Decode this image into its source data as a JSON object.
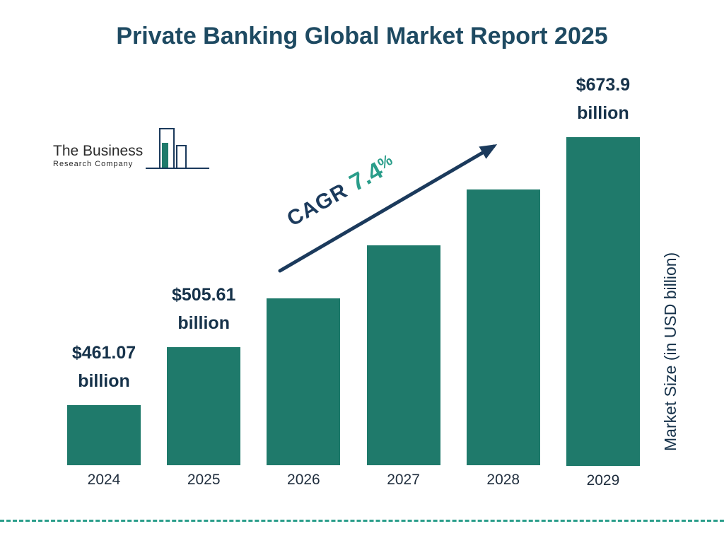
{
  "title": "Private Banking Global Market Report 2025",
  "logo": {
    "name_line1": "The Business",
    "name_line2": "Research Company"
  },
  "cagr": {
    "label": "CAGR",
    "value": "7.4",
    "unit": "%"
  },
  "y_axis_label": "Market Size (in USD billion)",
  "colors": {
    "title": "#1e4a62",
    "navy": "#1b3a5c",
    "bar": "#1f7a6b",
    "teal": "#2a9d8a",
    "text-dark": "#16324a"
  },
  "chart_data": {
    "type": "bar",
    "title": "Private Banking Global Market Report 2025",
    "xlabel": "",
    "ylabel": "Market Size (in USD billion)",
    "ylim": [
      415,
      675
    ],
    "grid": false,
    "legend": false,
    "categories": [
      "2024",
      "2025",
      "2026",
      "2027",
      "2028",
      "2029"
    ],
    "values": [
      461.07,
      505.61,
      543.0,
      583.2,
      626.4,
      673.9
    ],
    "annotations": [
      "CAGR 7.4%"
    ],
    "bars": [
      {
        "year": "2024",
        "value": 461.07,
        "label_lines": [
          "$461.07",
          "billion"
        ]
      },
      {
        "year": "2025",
        "value": 505.61,
        "label_lines": [
          "$505.61",
          "billion"
        ]
      },
      {
        "year": "2026",
        "value": 543.0,
        "label_lines": null
      },
      {
        "year": "2027",
        "value": 583.2,
        "label_lines": null
      },
      {
        "year": "2028",
        "value": 626.4,
        "label_lines": null
      },
      {
        "year": "2029",
        "value": 673.9,
        "label_lines": [
          "$673.9",
          "billion"
        ]
      }
    ]
  }
}
